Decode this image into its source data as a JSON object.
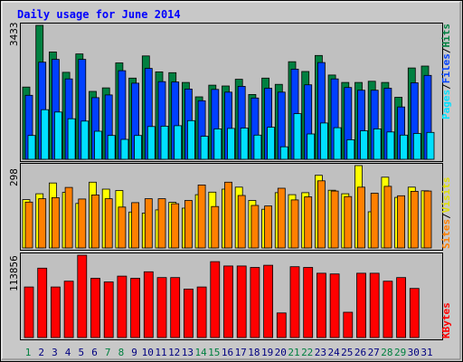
{
  "chart_data": [
    {
      "type": "bar",
      "title": "Daily usage for June 2014",
      "panel": "hits-files-pages",
      "ymax_label": "3433",
      "categories": [
        "1",
        "2",
        "3",
        "4",
        "5",
        "6",
        "7",
        "8",
        "9",
        "10",
        "11",
        "12",
        "13",
        "14",
        "15",
        "16",
        "17",
        "18",
        "19",
        "20",
        "21",
        "22",
        "23",
        "24",
        "25",
        "26",
        "27",
        "28",
        "29",
        "30",
        "31"
      ],
      "series": [
        {
          "name": "Hits",
          "color": "#008040",
          "values": [
            1850,
            3433,
            2750,
            2230,
            2700,
            1740,
            1830,
            2470,
            2080,
            2650,
            2240,
            2220,
            1970,
            1600,
            1900,
            1880,
            2050,
            1660,
            2080,
            1920,
            2500,
            2250,
            2660,
            2160,
            1970,
            1970,
            2000,
            1970,
            1590,
            2340,
            2390
          ]
        },
        {
          "name": "Files",
          "color": "#0040ff",
          "values": [
            1640,
            2490,
            2560,
            2060,
            2560,
            1580,
            1650,
            2270,
            1950,
            2330,
            1990,
            1980,
            1800,
            1500,
            1790,
            1720,
            1870,
            1570,
            1820,
            1720,
            2310,
            1910,
            2480,
            2060,
            1840,
            1770,
            1770,
            1820,
            1340,
            1960,
            2150
          ]
        },
        {
          "name": "Pages",
          "color": "#00e0ff",
          "values": [
            610,
            1270,
            1210,
            1040,
            980,
            720,
            610,
            510,
            610,
            840,
            850,
            860,
            990,
            590,
            780,
            790,
            800,
            620,
            820,
            320,
            1170,
            650,
            930,
            810,
            500,
            730,
            780,
            700,
            620,
            660,
            690
          ]
        }
      ],
      "ylabel_parts": [
        "Pages",
        "Files",
        "Hits"
      ]
    },
    {
      "type": "bar",
      "panel": "sites-visits",
      "ymax_label": "298",
      "categories": [
        "1",
        "2",
        "3",
        "4",
        "5",
        "6",
        "7",
        "8",
        "9",
        "10",
        "11",
        "12",
        "13",
        "14",
        "15",
        "16",
        "17",
        "18",
        "19",
        "20",
        "21",
        "22",
        "23",
        "24",
        "25",
        "26",
        "27",
        "28",
        "29",
        "30",
        "31"
      ],
      "series": [
        {
          "name": "Visits",
          "color": "#ffff00",
          "values": [
            175,
            196,
            235,
            201,
            161,
            238,
            213,
            208,
            130,
            126,
            138,
            165,
            144,
            193,
            202,
            213,
            220,
            172,
            140,
            200,
            193,
            200,
            263,
            209,
            196,
            298,
            131,
            256,
            183,
            220,
            207
          ]
        },
        {
          "name": "Sites",
          "color": "#ff8000",
          "values": [
            166,
            178,
            182,
            219,
            177,
            192,
            178,
            148,
            164,
            178,
            178,
            160,
            172,
            228,
            150,
            238,
            190,
            154,
            152,
            216,
            174,
            185,
            243,
            206,
            186,
            220,
            198,
            223,
            189,
            205,
            206
          ]
        }
      ],
      "ylabel_parts": [
        "Sites",
        "Visits"
      ]
    },
    {
      "type": "bar",
      "panel": "kbytes",
      "ymax_label": "113856",
      "categories": [
        "1",
        "2",
        "3",
        "4",
        "5",
        "6",
        "7",
        "8",
        "9",
        "10",
        "11",
        "12",
        "13",
        "14",
        "15",
        "16",
        "17",
        "18",
        "19",
        "20",
        "21",
        "22",
        "23",
        "24",
        "25",
        "26",
        "27",
        "28",
        "29",
        "30",
        "31"
      ],
      "series": [
        {
          "name": "KBytes",
          "color": "#ff0000",
          "values": [
            70000,
            96000,
            70000,
            78000,
            113856,
            82000,
            77000,
            85000,
            82000,
            91000,
            83000,
            83000,
            67000,
            70000,
            105000,
            99000,
            99000,
            97000,
            100000,
            34000,
            98000,
            97000,
            89000,
            88000,
            35000,
            89000,
            89000,
            78000,
            83000,
            68000,
            0
          ]
        }
      ],
      "ylabel_parts": [
        "KBytes"
      ]
    }
  ],
  "x_axis": {
    "days": [
      "1",
      "2",
      "3",
      "4",
      "5",
      "6",
      "7",
      "8",
      "9",
      "10",
      "11",
      "12",
      "13",
      "14",
      "15",
      "16",
      "17",
      "18",
      "19",
      "20",
      "21",
      "22",
      "23",
      "24",
      "25",
      "26",
      "27",
      "28",
      "29",
      "30",
      "31"
    ],
    "weekend_days": [
      "1",
      "7",
      "8",
      "14",
      "15",
      "21",
      "22",
      "28",
      "29"
    ],
    "weekend_color": "#008040",
    "weekday_color": "#000080"
  },
  "colors": {
    "title": "#0000ff",
    "background": "#c8c8c8",
    "plot_bg": "#c0c0c0",
    "slash": "#000000"
  }
}
